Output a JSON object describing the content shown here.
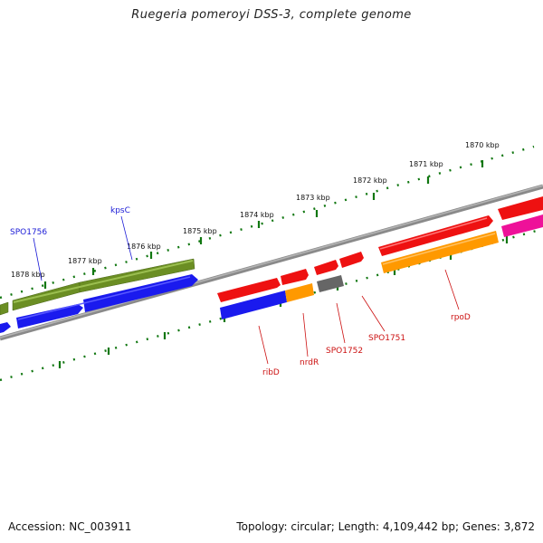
{
  "title": "Ruegeria pomeroyi DSS-3, complete genome",
  "footer": {
    "accession": "Accession: NC_003911",
    "topology": "Topology: circular; Length: 4,109,442 bp; Genes: 3,872"
  },
  "scale_labels": [
    "1878 kbp",
    "1877 kbp",
    "1876 kbp",
    "1875 kbp",
    "1874 kbp",
    "1873 kbp",
    "1872 kbp",
    "1871 kbp",
    "1870 kbp"
  ],
  "gene_labels": {
    "spo1756": "SPO1756",
    "kpsc": "kpsC",
    "ribd": "ribD",
    "nrdr": "nrdR",
    "spo1752": "SPO1752",
    "spo1751": "SPO1751",
    "rpod": "rpoD"
  },
  "colors": {
    "forward_cds_blue": "#1a1aee",
    "olive_feature": "#6b8e23",
    "red_feature": "#ee1111",
    "orange_feature": "#ff9900",
    "gray_feature": "#666666",
    "magenta_feature": "#ee1199",
    "ticks": "#117711",
    "backbone": "#888888",
    "label_blue": "#1a1ad6",
    "label_red": "#cc1111"
  }
}
